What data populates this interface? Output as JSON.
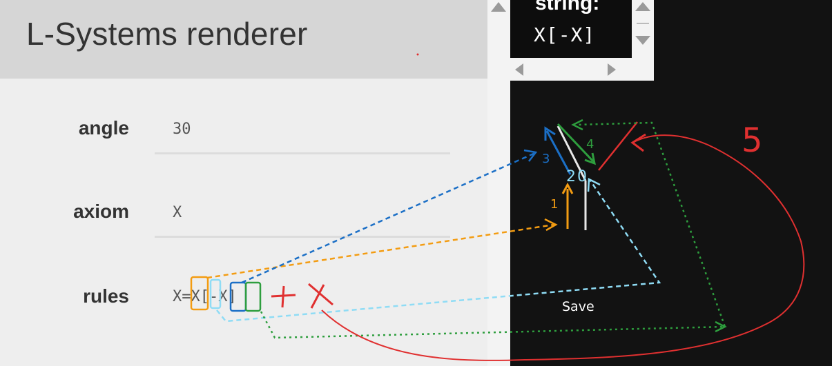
{
  "app": {
    "title": "L-Systems renderer"
  },
  "form": {
    "angle": {
      "label": "angle",
      "value": "30"
    },
    "axiom": {
      "label": "axiom",
      "value": "X"
    },
    "rules": {
      "label": "rules",
      "value": "X=X[-X]"
    }
  },
  "string_panel": {
    "label": "string:",
    "value": "X[-X]"
  },
  "annotations": {
    "step_1": "1",
    "step_2": "2",
    "step_3": "3",
    "step_4": "4",
    "zero_mark": "0",
    "five_mark": "5",
    "save_label": "Save",
    "colors": {
      "orange": "#f39c12",
      "blue": "#1b6fc6",
      "light_blue": "#8fdcf5",
      "green": "#2e9e3e",
      "red": "#e03030"
    }
  },
  "icons": {
    "gutter_up": "triangle-up-icon",
    "scroll_up": "triangle-up-icon",
    "scroll_down": "triangle-down-icon",
    "scroll_left": "triangle-left-icon",
    "scroll_right": "triangle-right-icon"
  }
}
